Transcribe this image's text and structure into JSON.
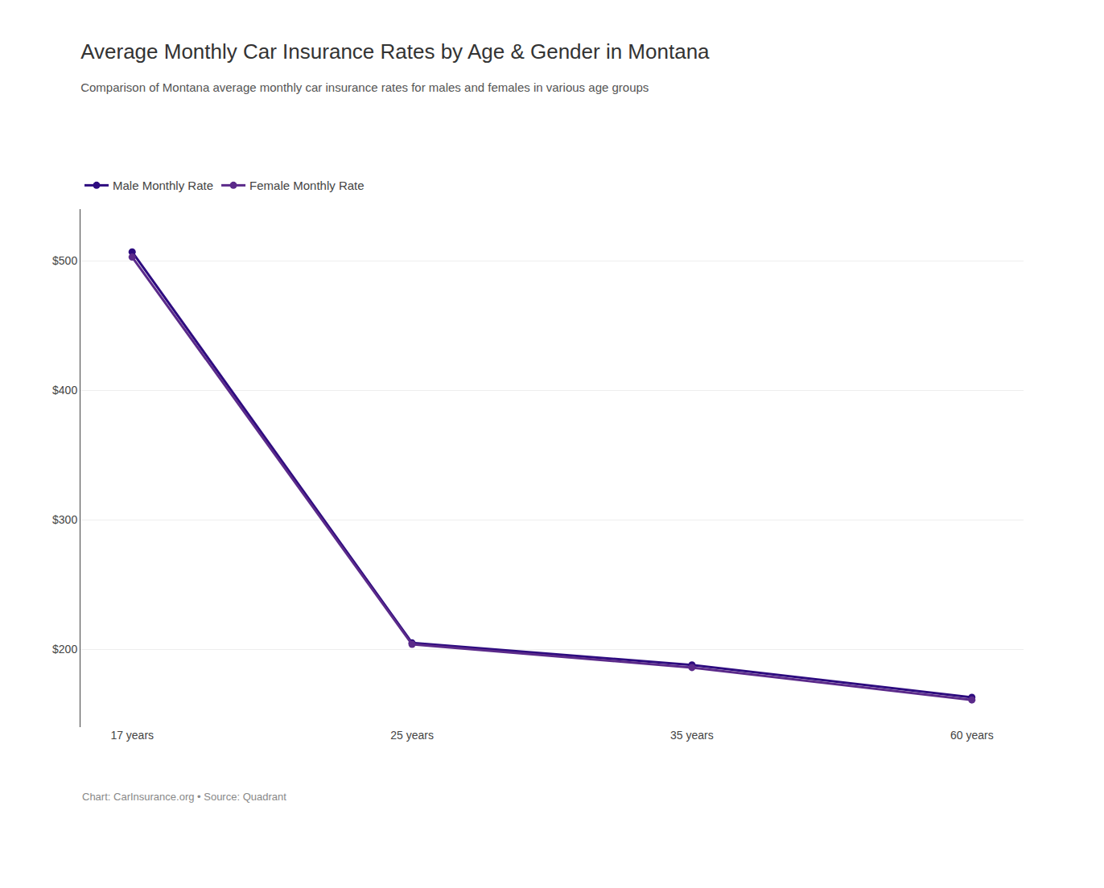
{
  "chart_data": {
    "type": "line",
    "title": "Average Monthly Car Insurance Rates by Age & Gender in Montana",
    "subtitle": "Comparison of Montana average monthly car insurance rates for males and females in various age groups",
    "annotations": [
      "Chart: CarInsurance.org • Source: Quadrant"
    ],
    "categories": [
      "17 years",
      "25 years",
      "35 years",
      "60 years"
    ],
    "series": [
      {
        "name": "Male Monthly Rate",
        "color": "#2d0b7f",
        "values": [
          507,
          205,
          188,
          163
        ]
      },
      {
        "name": "Female Monthly Rate",
        "color": "#5b2a8a",
        "values": [
          503,
          204,
          186,
          161
        ]
      }
    ],
    "ylim": [
      140,
      540
    ],
    "yticks": [
      {
        "value": 200,
        "label": "$200"
      },
      {
        "value": 300,
        "label": "$300"
      },
      {
        "value": 400,
        "label": "$400"
      },
      {
        "value": 500,
        "label": "$500"
      }
    ],
    "grid": true,
    "legend": "top-left",
    "marker": "circle"
  }
}
